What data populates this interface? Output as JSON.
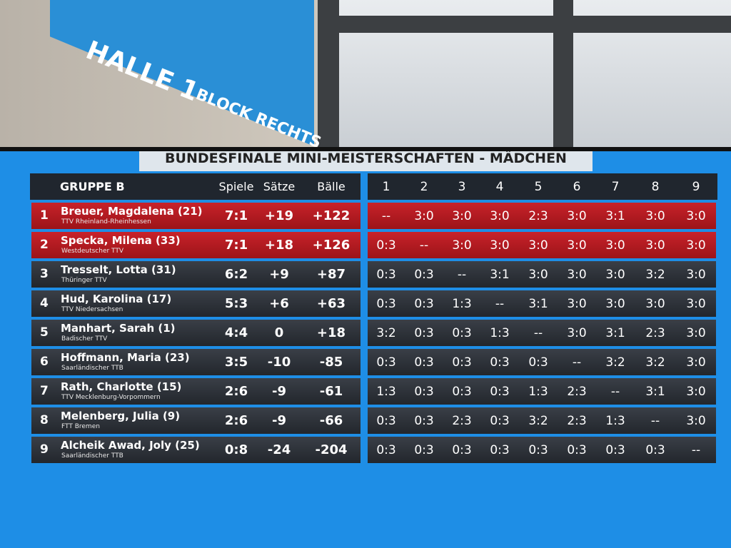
{
  "sign": {
    "hall": "HALLE 1",
    "block": "BLOCK RECHTS"
  },
  "screen": {
    "title": "BUNDESFINALE MINI-MEISTERSCHAFTEN  -  MÄDCHEN",
    "table": {
      "group": "GRUPPE B",
      "stat_headers": [
        "Spiele",
        "Sätze",
        "Bälle"
      ],
      "match_headers": [
        "1",
        "2",
        "3",
        "4",
        "5",
        "6",
        "7",
        "8",
        "9"
      ],
      "rows": [
        {
          "rank": "1",
          "name": "Breuer, Magdalena (21)",
          "club": "TTV Rheinland-Rheinhessen",
          "stats": [
            "7:1",
            "+19",
            "+122"
          ],
          "results": [
            "--",
            "3:0",
            "3:0",
            "3:0",
            "2:3",
            "3:0",
            "3:1",
            "3:0",
            "3:0"
          ]
        },
        {
          "rank": "2",
          "name": "Specka, Milena (33)",
          "club": "Westdeutscher TTV",
          "stats": [
            "7:1",
            "+18",
            "+126"
          ],
          "results": [
            "0:3",
            "--",
            "3:0",
            "3:0",
            "3:0",
            "3:0",
            "3:0",
            "3:0",
            "3:0"
          ]
        },
        {
          "rank": "3",
          "name": "Tresselt, Lotta (31)",
          "club": "Thüringer TTV",
          "stats": [
            "6:2",
            "+9",
            "+87"
          ],
          "results": [
            "0:3",
            "0:3",
            "--",
            "3:1",
            "3:0",
            "3:0",
            "3:0",
            "3:2",
            "3:0"
          ]
        },
        {
          "rank": "4",
          "name": "Hud, Karolina (17)",
          "club": "TTV Niedersachsen",
          "stats": [
            "5:3",
            "+6",
            "+63"
          ],
          "results": [
            "0:3",
            "0:3",
            "1:3",
            "--",
            "3:1",
            "3:0",
            "3:0",
            "3:0",
            "3:0"
          ]
        },
        {
          "rank": "5",
          "name": "Manhart, Sarah (1)",
          "club": "Badischer TTV",
          "stats": [
            "4:4",
            "0",
            "+18"
          ],
          "results": [
            "3:2",
            "0:3",
            "0:3",
            "1:3",
            "--",
            "3:0",
            "3:1",
            "2:3",
            "3:0"
          ]
        },
        {
          "rank": "6",
          "name": "Hoffmann, Maria (23)",
          "club": "Saarländischer TTB",
          "stats": [
            "3:5",
            "-10",
            "-85"
          ],
          "results": [
            "0:3",
            "0:3",
            "0:3",
            "0:3",
            "0:3",
            "--",
            "3:2",
            "3:2",
            "3:0"
          ]
        },
        {
          "rank": "7",
          "name": "Rath, Charlotte (15)",
          "club": "TTV Mecklenburg-Vorpommern",
          "stats": [
            "2:6",
            "-9",
            "-61"
          ],
          "results": [
            "1:3",
            "0:3",
            "0:3",
            "0:3",
            "1:3",
            "2:3",
            "--",
            "3:1",
            "3:0"
          ]
        },
        {
          "rank": "8",
          "name": "Melenberg, Julia (9)",
          "club": "FTT Bremen",
          "stats": [
            "2:6",
            "-9",
            "-66"
          ],
          "results": [
            "0:3",
            "0:3",
            "2:3",
            "0:3",
            "3:2",
            "2:3",
            "1:3",
            "--",
            "3:0"
          ]
        },
        {
          "rank": "9",
          "name": "Alcheik Awad, Joly (25)",
          "club": "Saarländischer TTB",
          "stats": [
            "0:8",
            "-24",
            "-204"
          ],
          "results": [
            "0:3",
            "0:3",
            "0:3",
            "0:3",
            "0:3",
            "0:3",
            "0:3",
            "0:3",
            "--"
          ]
        }
      ]
    }
  }
}
